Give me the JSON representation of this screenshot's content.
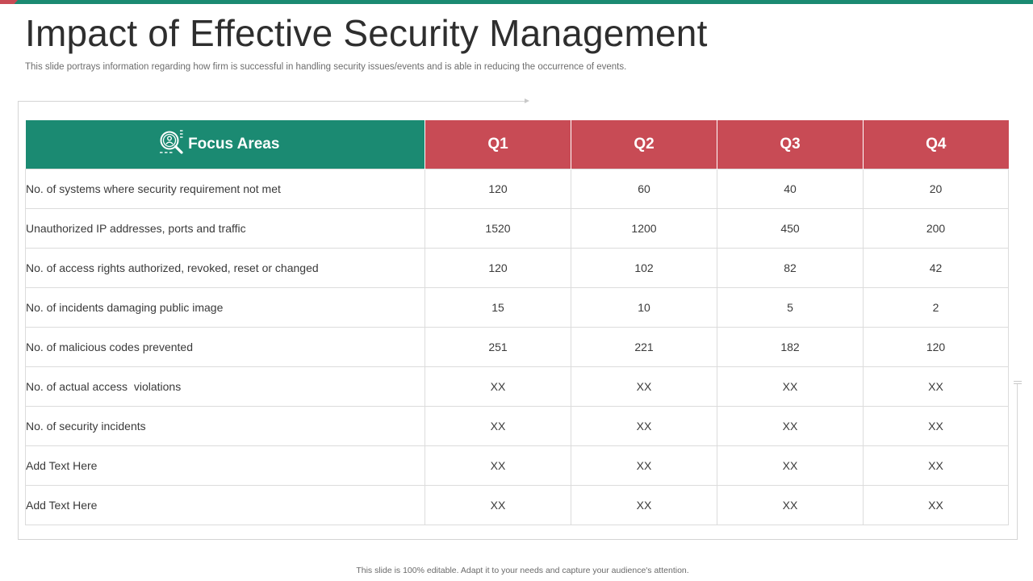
{
  "slide": {
    "title": "Impact of Effective Security Management",
    "subtitle": "This slide portrays information regarding how firm is successful in handling security issues/events and is able in reducing the occurrence of events.",
    "footer": "This slide is 100% editable. Adapt it to your needs and capture your audience's attention."
  },
  "colors": {
    "teal": "#1b8a72",
    "red": "#c84b55",
    "border": "#dcdcdc"
  },
  "table": {
    "focus_header": "Focus Areas",
    "focus_icon": "security-search-icon",
    "quarters": [
      "Q1",
      "Q2",
      "Q3",
      "Q4"
    ],
    "rows": [
      {
        "label": "No. of systems where security requirement not met",
        "values": [
          "120",
          "60",
          "40",
          "20"
        ]
      },
      {
        "label": "Unauthorized IP addresses, ports and traffic",
        "values": [
          "1520",
          "1200",
          "450",
          "200"
        ]
      },
      {
        "label": "No. of access rights authorized, revoked, reset or changed",
        "values": [
          "120",
          "102",
          "82",
          "42"
        ]
      },
      {
        "label": "No. of incidents damaging public image",
        "values": [
          "15",
          "10",
          "5",
          "2"
        ]
      },
      {
        "label": "No. of malicious codes prevented",
        "values": [
          "251",
          "221",
          "182",
          "120"
        ]
      },
      {
        "label": "No. of actual access  violations",
        "values": [
          "XX",
          "XX",
          "XX",
          "XX"
        ]
      },
      {
        "label": "No. of security incidents",
        "values": [
          "XX",
          "XX",
          "XX",
          "XX"
        ]
      },
      {
        "label": "Add Text Here",
        "values": [
          "XX",
          "XX",
          "XX",
          "XX"
        ]
      },
      {
        "label": "Add Text Here",
        "values": [
          "XX",
          "XX",
          "XX",
          "XX"
        ]
      }
    ]
  }
}
